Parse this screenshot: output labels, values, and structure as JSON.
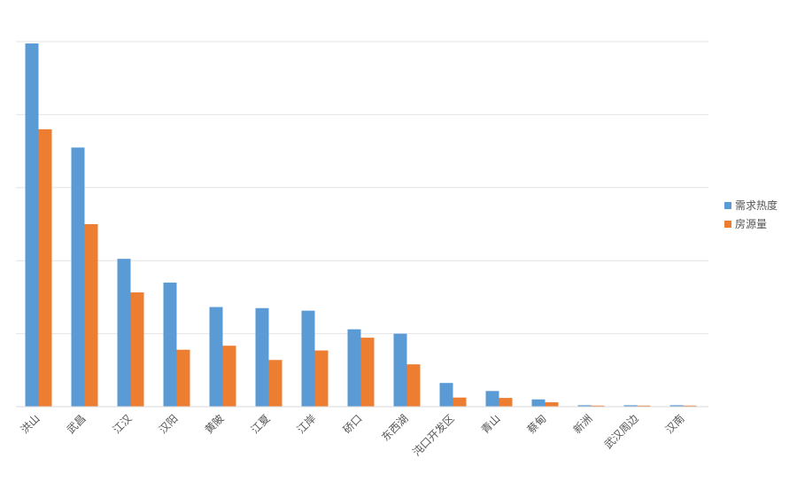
{
  "chart_data": {
    "type": "bar",
    "title": "",
    "xlabel": "",
    "ylabel": "",
    "ylim": [
      0,
      100
    ],
    "grid": true,
    "legend_position": "right",
    "categories": [
      "洪山",
      "武昌",
      "江汉",
      "汉阳",
      "黄陂",
      "江夏",
      "江岸",
      "硚口",
      "东西湖",
      "沌口开发区",
      "青山",
      "蔡甸",
      "新洲",
      "武汉周边",
      "汉南"
    ],
    "series": [
      {
        "name": "需求热度",
        "color": "#5B9BD5",
        "values": [
          99.5,
          71,
          40.5,
          34,
          27.3,
          27,
          26.3,
          21.2,
          20,
          6.5,
          4.3,
          2,
          0.4,
          0.4,
          0.4
        ]
      },
      {
        "name": "房源量",
        "color": "#ED7D31",
        "values": [
          76,
          50,
          31.3,
          15.6,
          16.7,
          12.8,
          15.4,
          18.9,
          11.6,
          2.5,
          2.4,
          1.2,
          0.3,
          0.3,
          0.3
        ]
      }
    ]
  }
}
